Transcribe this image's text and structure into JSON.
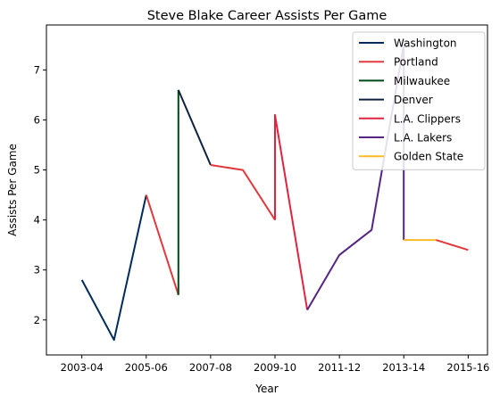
{
  "chart_data": {
    "type": "line",
    "title": "Steve Blake Career Assists Per Game",
    "xlabel": "Year",
    "ylabel": "Assists Per Game",
    "x_ticks": [
      {
        "label": "2003-04",
        "x": 2003
      },
      {
        "label": "2005-06",
        "x": 2005
      },
      {
        "label": "2007-08",
        "x": 2007
      },
      {
        "label": "2009-10",
        "x": 2009
      },
      {
        "label": "2011-12",
        "x": 2011
      },
      {
        "label": "2013-14",
        "x": 2013
      },
      {
        "label": "2015-16",
        "x": 2015
      }
    ],
    "y_ticks": [
      2,
      3,
      4,
      5,
      6,
      7
    ],
    "xlim": [
      2001.9,
      2015.6
    ],
    "ylim": [
      1.3,
      7.9
    ],
    "grid": false,
    "legend_position": "top-right",
    "series": [
      {
        "name": "Washington",
        "color": "#002B5C",
        "points": [
          [
            2003,
            2.8
          ],
          [
            2004,
            1.6
          ],
          [
            2005,
            4.5
          ]
        ]
      },
      {
        "name": "Portland",
        "color": "#E03A3E",
        "points": [
          [
            2005,
            4.5
          ],
          [
            2006,
            2.5
          ]
        ]
      },
      {
        "name": "Milwaukee",
        "color": "#00471B",
        "points": [
          [
            2006,
            2.5
          ],
          [
            2006,
            6.6
          ]
        ]
      },
      {
        "name": "Denver",
        "color": "#0E2240",
        "points": [
          [
            2006,
            6.6
          ],
          [
            2007,
            5.1
          ]
        ]
      },
      {
        "name": "Portland",
        "color": "#E03A3E",
        "points": [
          [
            2007,
            5.1
          ],
          [
            2008,
            5.0
          ],
          [
            2009,
            4.0
          ]
        ]
      },
      {
        "name": "L.A. Clippers",
        "color": "#E0243F",
        "points": [
          [
            2009,
            4.0
          ],
          [
            2009,
            6.1
          ],
          [
            2010,
            2.2
          ]
        ]
      },
      {
        "name": "L.A. Lakers",
        "color": "#552583",
        "points": [
          [
            2010,
            2.2
          ],
          [
            2011,
            3.3
          ],
          [
            2012,
            3.8
          ],
          [
            2013,
            7.5
          ],
          [
            2013,
            3.6
          ]
        ]
      },
      {
        "name": "Golden State",
        "color": "#FDB927",
        "points": [
          [
            2013,
            3.6
          ],
          [
            2014,
            3.6
          ]
        ]
      },
      {
        "name": "Portland",
        "color": "#E03A3E",
        "points": [
          [
            2014,
            3.6
          ],
          [
            2015,
            3.4
          ]
        ]
      }
    ],
    "legend": [
      {
        "name": "Washington",
        "color": "#002B5C"
      },
      {
        "name": "Portland",
        "color": "#E03A3E"
      },
      {
        "name": "Milwaukee",
        "color": "#00471B"
      },
      {
        "name": "Denver",
        "color": "#0E2240"
      },
      {
        "name": "L.A. Clippers",
        "color": "#E0243F"
      },
      {
        "name": "L.A. Lakers",
        "color": "#552583"
      },
      {
        "name": "Golden State",
        "color": "#FDB927"
      }
    ]
  }
}
